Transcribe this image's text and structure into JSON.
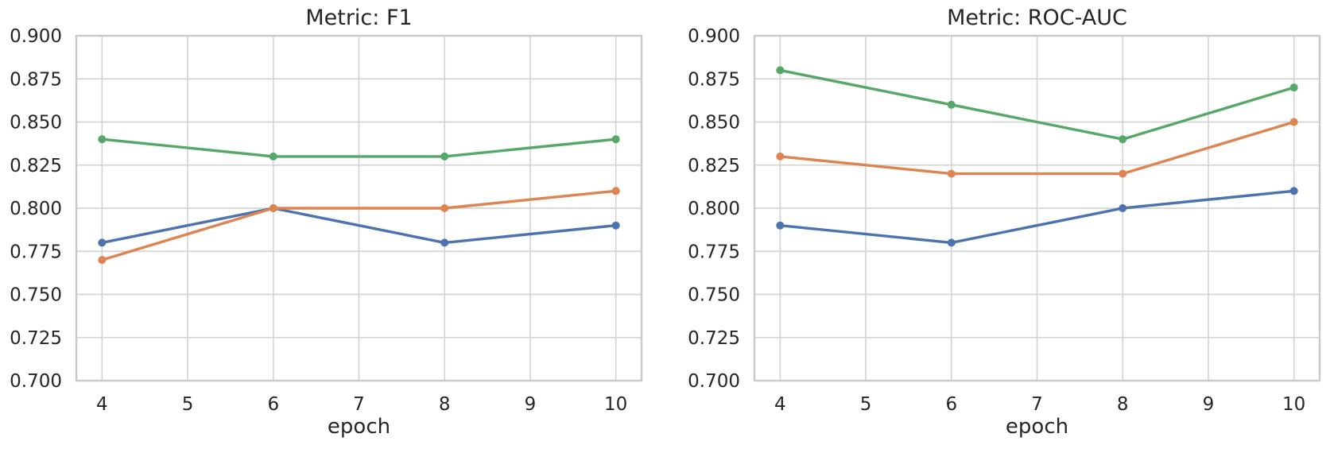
{
  "style": {
    "background": "#ffffff",
    "text_color": "#262626",
    "grid_color": "#d5d5d5",
    "spine_color": "#c9c9c9"
  },
  "chart_data": [
    {
      "type": "line",
      "title": "Metric: F1",
      "xlabel": "epoch",
      "ylabel": "",
      "x": [
        4,
        6,
        8,
        10
      ],
      "xticks": [
        4,
        5,
        6,
        7,
        8,
        9,
        10
      ],
      "yticks": [
        0.7,
        0.725,
        0.75,
        0.775,
        0.8,
        0.825,
        0.85,
        0.875,
        0.9
      ],
      "xlim": [
        3.7,
        10.3
      ],
      "ylim": [
        0.7,
        0.9
      ],
      "ytick_decimals": 3,
      "grid": true,
      "legend": "none",
      "series": [
        {
          "name": "blue",
          "color": "#4C72B0",
          "values": [
            0.78,
            0.8,
            0.78,
            0.79
          ]
        },
        {
          "name": "orange",
          "color": "#DD8452",
          "values": [
            0.77,
            0.8,
            0.8,
            0.81
          ]
        },
        {
          "name": "green",
          "color": "#55A868",
          "values": [
            0.84,
            0.83,
            0.83,
            0.84
          ]
        }
      ]
    },
    {
      "type": "line",
      "title": "Metric: ROC-AUC",
      "xlabel": "epoch",
      "ylabel": "",
      "x": [
        4,
        6,
        8,
        10
      ],
      "xticks": [
        4,
        5,
        6,
        7,
        8,
        9,
        10
      ],
      "yticks": [
        0.7,
        0.725,
        0.75,
        0.775,
        0.8,
        0.825,
        0.85,
        0.875,
        0.9
      ],
      "xlim": [
        3.7,
        10.3
      ],
      "ylim": [
        0.7,
        0.9
      ],
      "ytick_decimals": 3,
      "grid": true,
      "legend": "none",
      "series": [
        {
          "name": "blue",
          "color": "#4C72B0",
          "values": [
            0.79,
            0.78,
            0.8,
            0.81
          ]
        },
        {
          "name": "orange",
          "color": "#DD8452",
          "values": [
            0.83,
            0.82,
            0.82,
            0.85
          ]
        },
        {
          "name": "green",
          "color": "#55A868",
          "values": [
            0.88,
            0.86,
            0.84,
            0.87
          ]
        }
      ]
    }
  ]
}
